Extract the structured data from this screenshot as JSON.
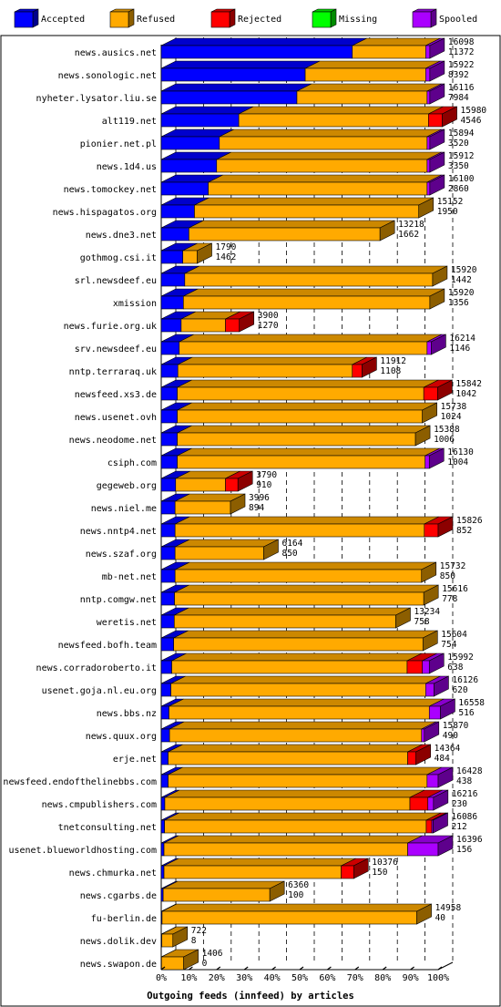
{
  "chart_data": {
    "type": "bar",
    "orientation": "horizontal",
    "stacked": true,
    "xlabel": "Outgoing feeds (innfeed) by articles",
    "ylabel": "",
    "xlim": [
      0,
      100
    ],
    "unit": "%",
    "x_ticks": [
      "0%",
      "10%",
      "20%",
      "30%",
      "40%",
      "50%",
      "60%",
      "70%",
      "80%",
      "90%",
      "100%"
    ],
    "legend": [
      {
        "name": "Accepted",
        "color": "#0000ff"
      },
      {
        "name": "Refused",
        "color": "#ffaa00"
      },
      {
        "name": "Rejected",
        "color": "#ff0000"
      },
      {
        "name": "Missing",
        "color": "#00ff00"
      },
      {
        "name": "Spooled",
        "color": "#aa00ff"
      }
    ],
    "legend_position": "top",
    "grid": true,
    "categories": [
      "news.ausics.net",
      "news.sonologic.net",
      "nyheter.lysator.liu.se",
      "alt119.net",
      "pionier.net.pl",
      "news.1d4.us",
      "news.tomockey.net",
      "news.hispagatos.org",
      "news.dne3.net",
      "gothmog.csi.it",
      "srl.newsdeef.eu",
      "xmission",
      "news.furie.org.uk",
      "srv.newsdeef.eu",
      "nntp.terraraq.uk",
      "newsfeed.xs3.de",
      "news.usenet.ovh",
      "news.neodome.net",
      "csiph.com",
      "gegeweb.org",
      "news.niel.me",
      "news.nntp4.net",
      "news.szaf.org",
      "mb-net.net",
      "nntp.comgw.net",
      "weretis.net",
      "newsfeed.bofh.team",
      "news.corradoroberto.it",
      "usenet.goja.nl.eu.org",
      "news.bbs.nz",
      "news.quux.org",
      "erje.net",
      "newsfeed.endofthelinebbs.com",
      "news.cmpublishers.com",
      "tnetconsulting.net",
      "usenet.blueworldhosting.com",
      "news.chmurka.net",
      "news.cgarbs.de",
      "fu-berlin.de",
      "news.dolik.dev",
      "news.swapon.de"
    ],
    "offered_articles": [
      16098,
      15922,
      16116,
      15980,
      15894,
      15912,
      16100,
      15152,
      13218,
      1790,
      15920,
      15920,
      3900,
      16214,
      11912,
      15842,
      15738,
      15388,
      16130,
      3790,
      3996,
      15826,
      6164,
      15732,
      15616,
      13234,
      15604,
      15992,
      16126,
      16558,
      15870,
      14364,
      16428,
      16216,
      16086,
      16396,
      10376,
      6360,
      14958,
      722,
      1406
    ],
    "accepted_articles": [
      11372,
      8392,
      7984,
      4546,
      3520,
      3350,
      2860,
      1950,
      1662,
      1462,
      1442,
      1356,
      1270,
      1146,
      1108,
      1042,
      1024,
      1006,
      1004,
      910,
      894,
      852,
      850,
      850,
      778,
      758,
      754,
      638,
      620,
      516,
      490,
      484,
      438,
      230,
      212,
      156,
      150,
      100,
      40,
      8,
      0
    ],
    "series": [
      {
        "name": "Accepted",
        "values": [
          69.0,
          52.0,
          49.0,
          28.0,
          21.0,
          20.0,
          17.0,
          12.0,
          10.0,
          7.8,
          8.5,
          8.0,
          7.2,
          6.5,
          6.0,
          5.8,
          5.8,
          5.8,
          5.8,
          5.2,
          5.0,
          5.0,
          5.0,
          5.0,
          4.8,
          4.7,
          4.5,
          3.8,
          3.5,
          2.8,
          3.0,
          2.5,
          2.5,
          1.3,
          1.2,
          1.0,
          1.0,
          0.7,
          0.3,
          0.2,
          0.1
        ]
      },
      {
        "name": "Refused",
        "values": [
          26.5,
          43.5,
          47.0,
          68.5,
          75.0,
          76.0,
          79.0,
          81.0,
          69.0,
          5.2,
          89.5,
          89.0,
          16.0,
          89.5,
          63.0,
          89.0,
          88.5,
          86.0,
          89.5,
          18.0,
          20.0,
          90.0,
          32.0,
          89.0,
          90.0,
          80.0,
          90.0,
          85.0,
          92.0,
          94.0,
          91.0,
          86.5,
          93.5,
          88.5,
          94.5,
          88.0,
          64.0,
          38.5,
          92.0,
          4.0,
          8.0
        ]
      },
      {
        "name": "Rejected",
        "values": [
          0.0,
          0.0,
          0.0,
          5.0,
          0.0,
          0.0,
          0.0,
          0.0,
          0.0,
          0.0,
          0.0,
          0.0,
          5.0,
          0.0,
          3.5,
          5.0,
          0.0,
          0.0,
          0.0,
          4.5,
          0.0,
          5.0,
          0.0,
          0.0,
          0.0,
          0.0,
          0.0,
          5.5,
          0.0,
          0.0,
          0.0,
          3.0,
          0.0,
          6.5,
          2.0,
          0.0,
          4.5,
          0.0,
          0.0,
          0.0,
          0.0
        ]
      },
      {
        "name": "Missing",
        "values": [
          0,
          0,
          0,
          0,
          0,
          0,
          0,
          0,
          0,
          0,
          0,
          0,
          0,
          0,
          0,
          0,
          0,
          0,
          0,
          0,
          0,
          0,
          0,
          0,
          0,
          0,
          0,
          0,
          0,
          0,
          0,
          0,
          0,
          0,
          0,
          0,
          0,
          0,
          0,
          0,
          0
        ]
      },
      {
        "name": "Spooled",
        "values": [
          1.5,
          1.5,
          1.0,
          0.0,
          1.0,
          1.0,
          1.0,
          0.0,
          0.0,
          0.0,
          0.0,
          0.0,
          0.0,
          1.5,
          0.0,
          0.0,
          0.0,
          0.0,
          1.5,
          0.0,
          0.0,
          0.0,
          0.0,
          0.0,
          0.0,
          0.0,
          0.0,
          2.5,
          3.0,
          4.0,
          1.0,
          0.0,
          4.0,
          2.0,
          0.5,
          11.0,
          0.0,
          0.0,
          0.0,
          0.0,
          0.0
        ]
      }
    ]
  }
}
